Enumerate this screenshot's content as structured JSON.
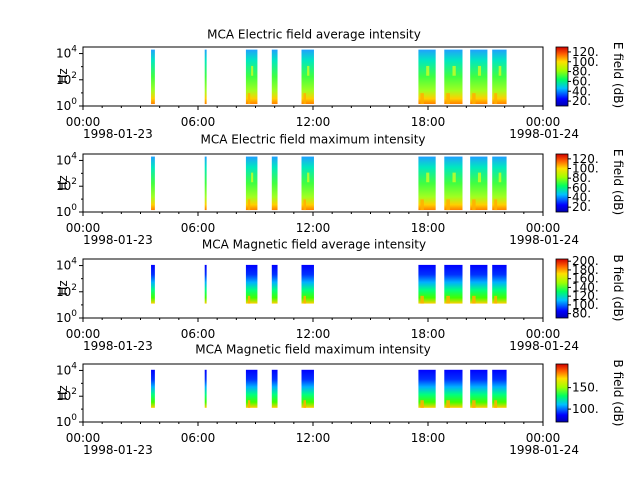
{
  "figure": {
    "time_ticks": [
      "00:00",
      "06:00",
      "12:00",
      "18:00",
      "00:00"
    ],
    "start_date": "1998-01-23",
    "end_date": "1998-01-24"
  },
  "chart_data": [
    {
      "type": "heatmap",
      "title": "MCA  Electric field average intensity",
      "ylabel": "Hz",
      "yticks": [
        "10^0",
        "10^2",
        "10^4"
      ],
      "colorbar_label": "E field (dB)",
      "colorbar_ticks": [
        "20.",
        "40.",
        "60.",
        "80.",
        "100.",
        "120."
      ],
      "colorbar_range": [
        10,
        130
      ],
      "grid": false
    },
    {
      "type": "heatmap",
      "title": "MCA  Electric field maximum intensity",
      "ylabel": "Hz",
      "yticks": [
        "10^0",
        "10^2",
        "10^4"
      ],
      "colorbar_label": "E field (dB)",
      "colorbar_ticks": [
        "20.",
        "40.",
        "60.",
        "80.",
        "100.",
        "120."
      ],
      "colorbar_range": [
        10,
        130
      ],
      "grid": false
    },
    {
      "type": "heatmap",
      "title": "MCA  Magnetic field average intensity",
      "ylabel": "Hz",
      "yticks": [
        "10^0",
        "10^2",
        "10^4"
      ],
      "colorbar_label": "B field (dB)",
      "colorbar_ticks": [
        "80.",
        "100.",
        "120.",
        "140.",
        "160.",
        "180.",
        "200."
      ],
      "colorbar_range": [
        70,
        205
      ],
      "grid": false
    },
    {
      "type": "heatmap",
      "title": "MCA  Magnetic field maximum intensity",
      "ylabel": "Hz",
      "yticks": [
        "10^0",
        "10^2",
        "10^4"
      ],
      "colorbar_label": "B field (dB)",
      "colorbar_ticks": [
        "100.",
        "150."
      ],
      "colorbar_range": [
        70,
        205
      ],
      "grid": false
    }
  ],
  "data_segments_hours": [
    [
      3.55,
      3.75
    ],
    [
      6.35,
      6.45
    ],
    [
      8.5,
      9.1
    ],
    [
      9.85,
      10.15
    ],
    [
      11.4,
      12.05
    ],
    [
      17.5,
      18.4
    ],
    [
      18.85,
      19.8
    ],
    [
      20.2,
      21.1
    ],
    [
      21.35,
      22.1
    ]
  ]
}
